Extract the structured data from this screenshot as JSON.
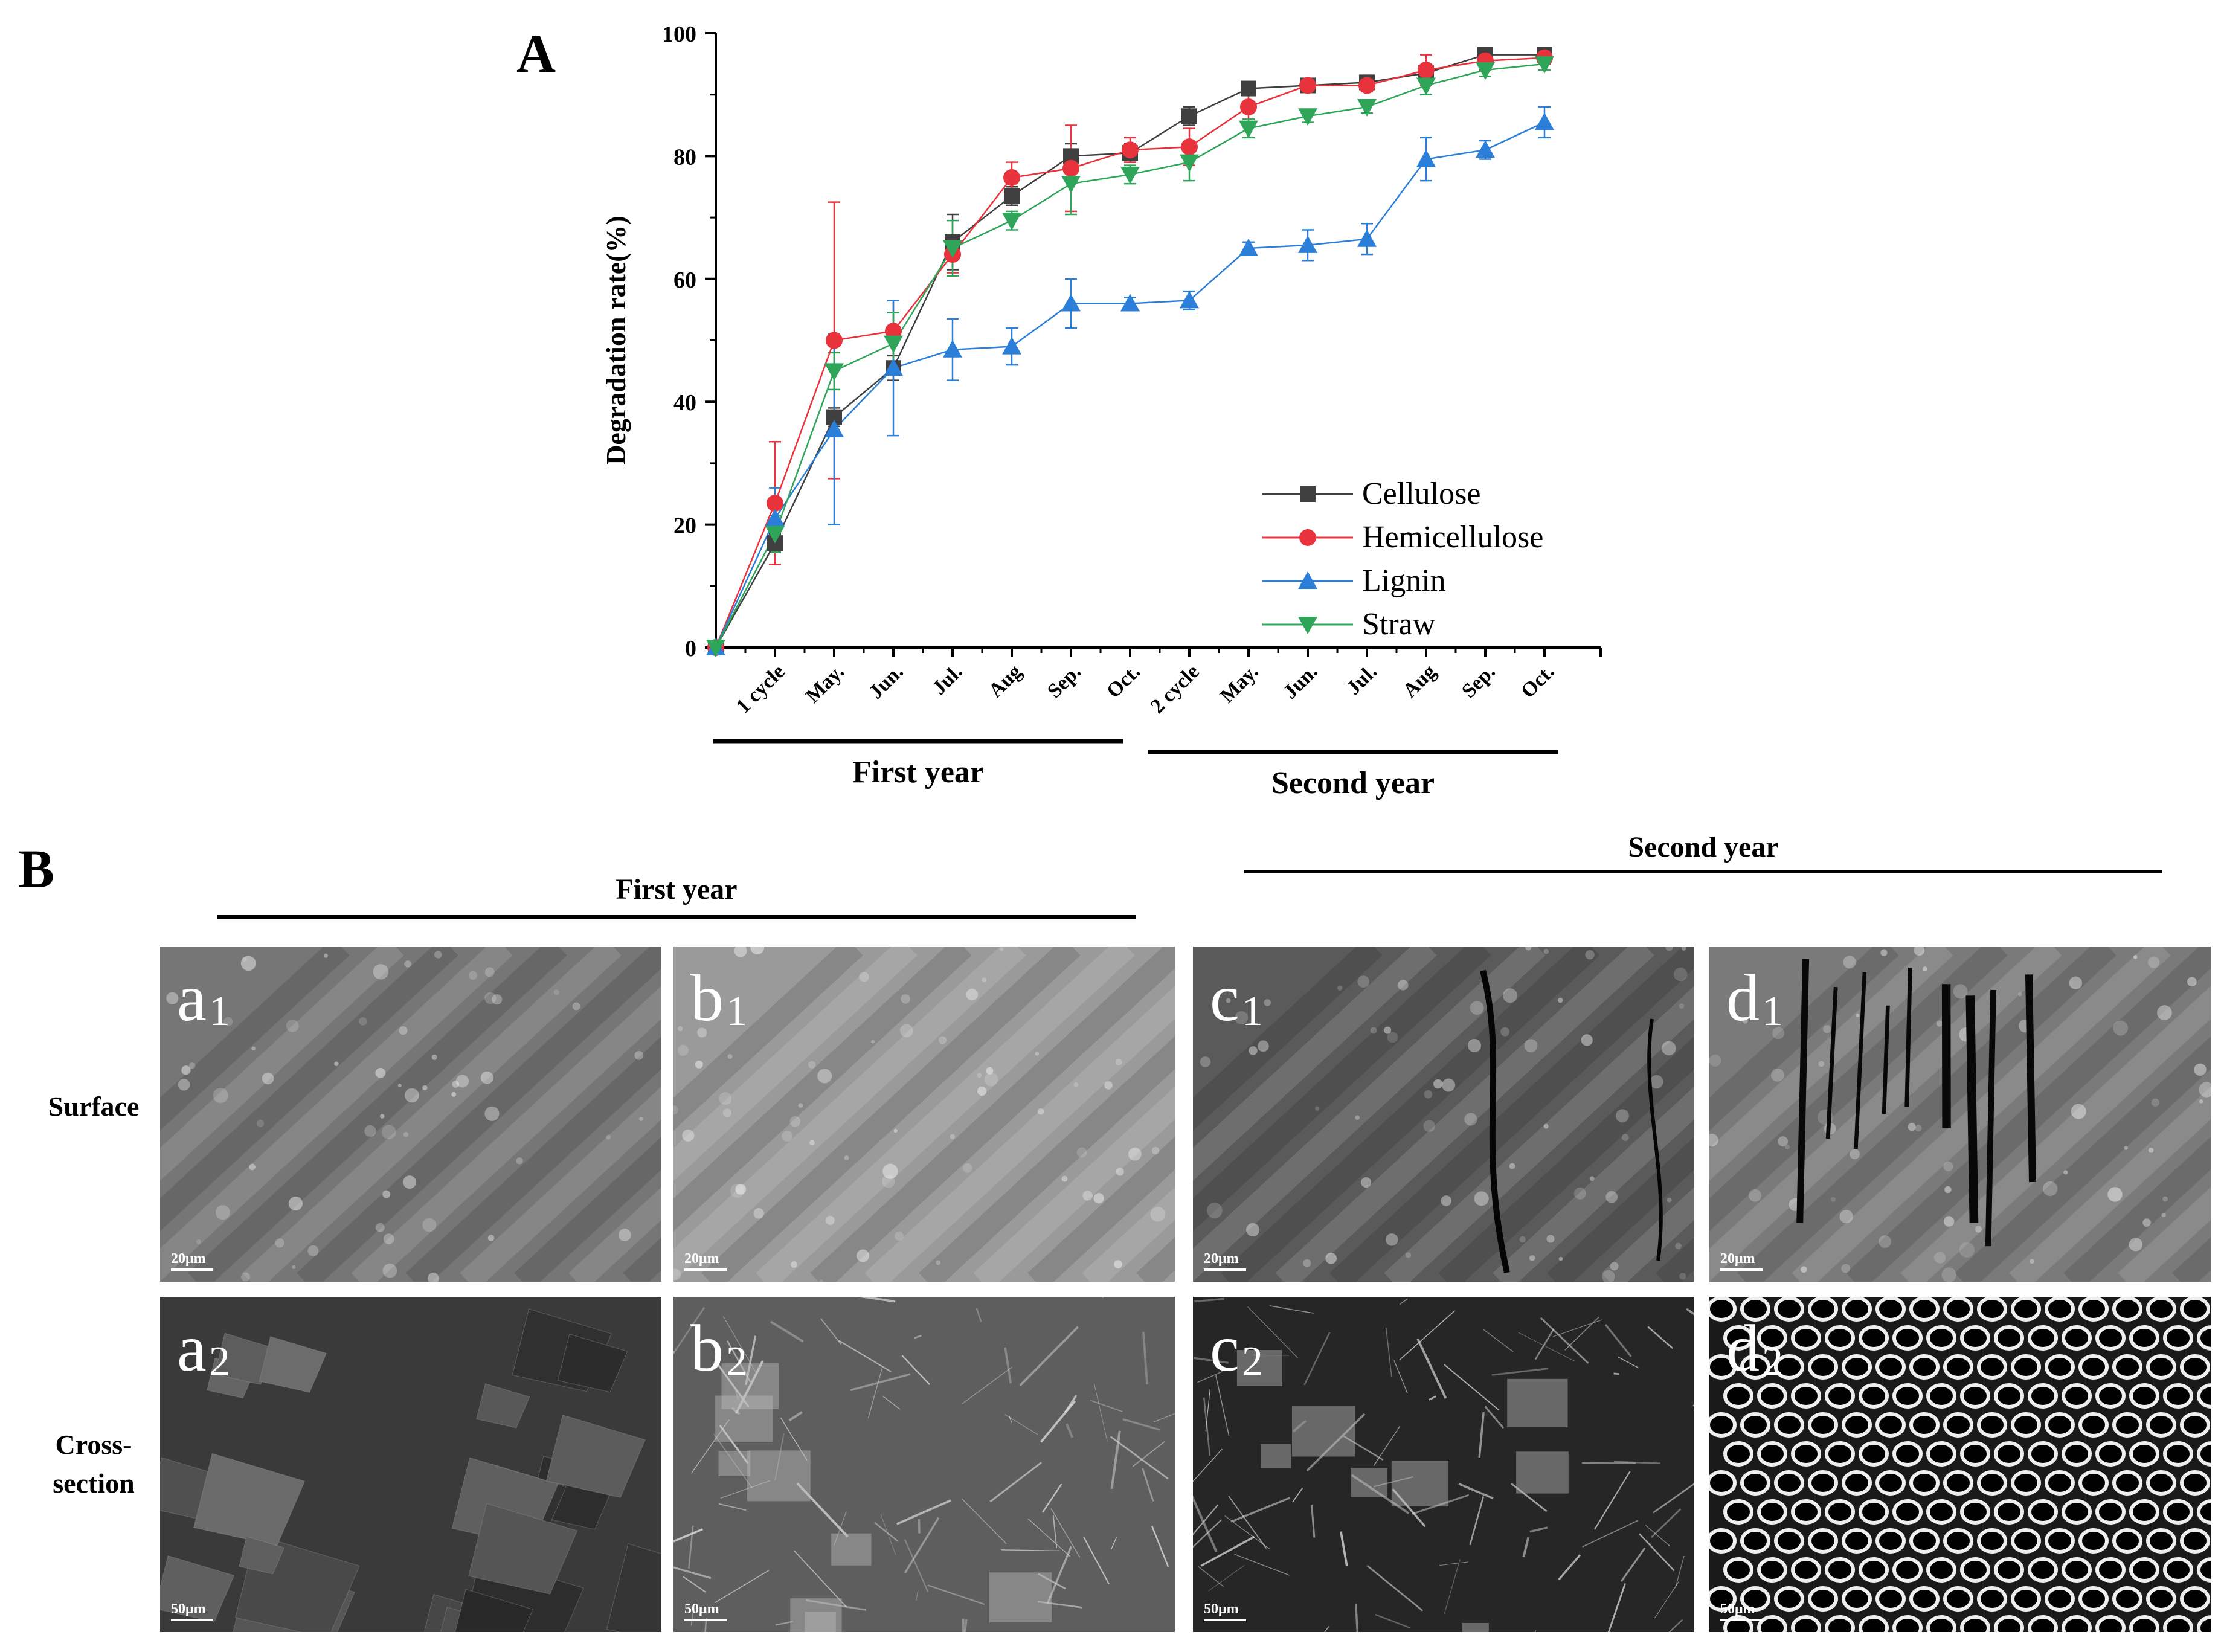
{
  "panel_a": {
    "letter": "A",
    "chart_data": {
      "type": "line",
      "x": [
        "",
        "1 cycle",
        "May.",
        "Jun.",
        "Jul.",
        "Aug",
        "Sep.",
        "Oct.",
        "2 cycle",
        "May.",
        "Jun.",
        "Jul.",
        "Aug",
        "Sep.",
        "Oct."
      ],
      "ylabel": "Degradation rate(%)",
      "ylim": [
        0,
        100
      ],
      "yticks": [
        0,
        20,
        40,
        60,
        80,
        100
      ],
      "groups": [
        {
          "label": "First year",
          "from": 1,
          "to": 7
        },
        {
          "label": "Second year",
          "from": 8,
          "to": 14
        }
      ],
      "legend_position": "bottom-right",
      "series": [
        {
          "name": "Cellulose",
          "color": "#3f3f3f",
          "marker": "square",
          "values": [
            0,
            17,
            37.5,
            45.5,
            66,
            73.5,
            80,
            80.5,
            86.5,
            91,
            91.5,
            92,
            93.5,
            96.5,
            96.5
          ],
          "errors": [
            0,
            1.5,
            1.5,
            2,
            4.5,
            1.5,
            2,
            1.5,
            1.5,
            1,
            1,
            1,
            1,
            0.8,
            0.8
          ]
        },
        {
          "name": "Hemicellulose",
          "color": "#e8323c",
          "marker": "circle",
          "values": [
            0,
            23.5,
            50,
            51.5,
            64,
            76.5,
            78,
            81,
            81.5,
            88,
            91.5,
            91.5,
            94,
            95.5,
            96
          ],
          "errors": [
            0,
            10,
            22.5,
            5,
            3,
            2.5,
            7,
            2,
            3,
            2,
            1,
            1,
            2.5,
            1.5,
            1
          ]
        },
        {
          "name": "Lignin",
          "color": "#2b7fd9",
          "marker": "triangle-up",
          "values": [
            0,
            21,
            35.5,
            45.5,
            48.5,
            49,
            56,
            56,
            56.5,
            65,
            65.5,
            66.5,
            79.5,
            81,
            85.5
          ],
          "errors": [
            0,
            5,
            15.5,
            11,
            5,
            3,
            4,
            1,
            1.5,
            1,
            2.5,
            2.5,
            3.5,
            1.5,
            2.5
          ]
        },
        {
          "name": "Straw",
          "color": "#2fa55a",
          "marker": "triangle-down",
          "values": [
            0,
            18.5,
            45,
            49.5,
            65,
            69.5,
            75.5,
            77,
            79,
            84.5,
            86.5,
            88,
            91.5,
            94,
            95
          ],
          "errors": [
            0,
            3,
            3,
            5,
            4.5,
            1.5,
            5,
            1.5,
            3,
            1.5,
            1,
            1,
            1.5,
            1,
            1
          ]
        }
      ]
    }
  },
  "panel_b": {
    "letter": "B",
    "first_year": "First year",
    "second_year": "Second year",
    "rows": {
      "surface": "Surface",
      "cross_line1": "Cross-",
      "cross_line2": "section"
    },
    "images": [
      {
        "letter": "a",
        "sub": "1",
        "scale": "20μm",
        "tone": "#767676",
        "kind": "surface-smooth"
      },
      {
        "letter": "b",
        "sub": "1",
        "scale": "20μm",
        "tone": "#9a9a9a",
        "kind": "surface-particles"
      },
      {
        "letter": "c",
        "sub": "1",
        "scale": "20μm",
        "tone": "#5a5a5a",
        "kind": "surface-cracked"
      },
      {
        "letter": "d",
        "sub": "1",
        "scale": "20μm",
        "tone": "#7a7a7a",
        "kind": "surface-broken"
      },
      {
        "letter": "a",
        "sub": "2",
        "scale": "50μm",
        "tone": "#3a3a3a",
        "kind": "cross-plates"
      },
      {
        "letter": "b",
        "sub": "2",
        "scale": "50μm",
        "tone": "#5e5e5e",
        "kind": "cross-fibers"
      },
      {
        "letter": "c",
        "sub": "2",
        "scale": "50μm",
        "tone": "#262626",
        "kind": "cross-network"
      },
      {
        "letter": "d",
        "sub": "2",
        "scale": "50μm",
        "tone": "#1a1a1a",
        "kind": "cross-honeycomb"
      }
    ]
  }
}
